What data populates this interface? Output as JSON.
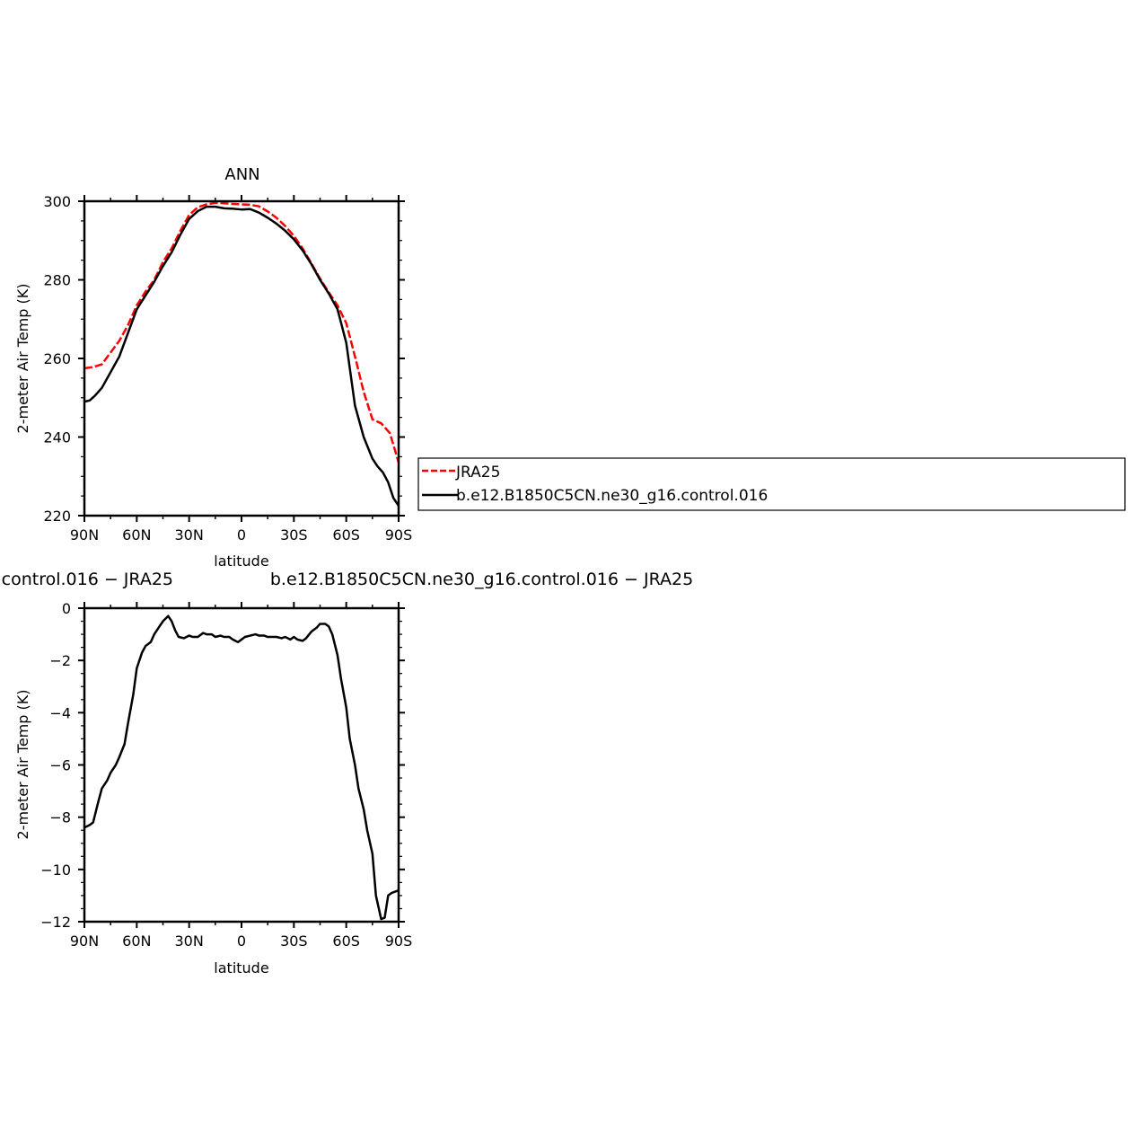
{
  "chart_data": [
    {
      "type": "line",
      "title": "ANN",
      "xlabel": "latitude",
      "ylabel": "2-meter Air Temp (K)",
      "xlim": [
        90,
        -90
      ],
      "ylim": [
        220,
        300
      ],
      "xticks": [
        {
          "v": 90,
          "label": "90N"
        },
        {
          "v": 60,
          "label": "60N"
        },
        {
          "v": 30,
          "label": "30N"
        },
        {
          "v": 0,
          "label": "0"
        },
        {
          "v": -30,
          "label": "30S"
        },
        {
          "v": -60,
          "label": "60S"
        },
        {
          "v": -90,
          "label": "90S"
        }
      ],
      "yticks": [
        300,
        280,
        260,
        240,
        220
      ],
      "legend": {
        "placement": "right",
        "entries": [
          {
            "label": "JRA25",
            "color": "#ff0000",
            "dash": "dashed"
          },
          {
            "label": "b.e12.B1850C5CN.ne30_g16.control.016",
            "color": "#000000",
            "dash": "solid"
          }
        ]
      },
      "series": [
        {
          "name": "JRA25",
          "color": "#ff0000",
          "dash": "dashed",
          "x": [
            90,
            85,
            80,
            75,
            70,
            65,
            60,
            55,
            50,
            45,
            40,
            35,
            30,
            25,
            20,
            15,
            10,
            5,
            0,
            -5,
            -10,
            -15,
            -20,
            -25,
            -30,
            -35,
            -40,
            -45,
            -50,
            -55,
            -60,
            -65,
            -70,
            -75,
            -80,
            -85,
            -90
          ],
          "y": [
            257.5,
            257.8,
            258.5,
            261.5,
            264.5,
            268.5,
            273.5,
            277,
            280,
            284.5,
            288,
            292.5,
            296.5,
            298.5,
            299.2,
            299.6,
            299.5,
            299.3,
            299.2,
            299.1,
            298.7,
            297.4,
            295.8,
            293.7,
            291.2,
            288,
            284.2,
            280.3,
            276.8,
            273.5,
            269,
            260.5,
            251.5,
            244.5,
            243.5,
            241,
            233.5
          ]
        },
        {
          "name": "b.e12.B1850C5CN.ne30_g16.control.016",
          "color": "#000000",
          "dash": "solid",
          "x": [
            90,
            87,
            84,
            80,
            75,
            70,
            65,
            60,
            55,
            50,
            45,
            40,
            35,
            30,
            25,
            20,
            15,
            10,
            5,
            0,
            -5,
            -10,
            -15,
            -20,
            -25,
            -30,
            -35,
            -40,
            -45,
            -50,
            -55,
            -60,
            -65,
            -70,
            -75,
            -78,
            -81,
            -84,
            -87,
            -90
          ],
          "y": [
            249,
            249.3,
            250.5,
            252.5,
            256.5,
            260.5,
            266.5,
            272.5,
            276,
            279.5,
            283.5,
            287,
            291.5,
            295.5,
            297.5,
            298.6,
            298.6,
            298.2,
            298.1,
            297.9,
            298,
            297.1,
            295.8,
            294.3,
            292.5,
            290.3,
            287.5,
            284,
            280,
            276.5,
            272.5,
            264,
            248,
            240,
            234.5,
            232.5,
            231,
            228.5,
            224.5,
            222.5
          ]
        }
      ]
    },
    {
      "type": "line",
      "title": "b.e12.B1850C5CN.ne30_g16.control.016 − JRA25",
      "xlabel": "latitude",
      "ylabel": "2-meter Air Temp (K)",
      "xlim": [
        90,
        -90
      ],
      "ylim": [
        -12,
        0
      ],
      "xticks": [
        {
          "v": 90,
          "label": "90N"
        },
        {
          "v": 60,
          "label": "60N"
        },
        {
          "v": 30,
          "label": "30N"
        },
        {
          "v": 0,
          "label": "0"
        },
        {
          "v": -30,
          "label": "30S"
        },
        {
          "v": -60,
          "label": "60S"
        },
        {
          "v": -90,
          "label": "90S"
        }
      ],
      "yticks": [
        0,
        -2,
        -4,
        -6,
        -8,
        -10,
        -12
      ],
      "series": [
        {
          "color": "#000000",
          "dash": "solid",
          "x": [
            90,
            87,
            85,
            82,
            80,
            77,
            75,
            72,
            70,
            67,
            65,
            62,
            60,
            57,
            55,
            52,
            50,
            47,
            45,
            42,
            40,
            38,
            36,
            33,
            30,
            28,
            25,
            22,
            20,
            17,
            15,
            12,
            10,
            7,
            5,
            2,
            0,
            -2,
            -5,
            -8,
            -10,
            -13,
            -15,
            -18,
            -20,
            -23,
            -25,
            -28,
            -30,
            -32,
            -35,
            -37,
            -40,
            -43,
            -45,
            -48,
            -50,
            -52,
            -55,
            -57,
            -60,
            -62,
            -65,
            -67,
            -70,
            -72,
            -75,
            -77,
            -80,
            -82,
            -84,
            -86,
            -88,
            -90
          ],
          "y": [
            -8.4,
            -8.3,
            -8.2,
            -7.4,
            -6.9,
            -6.6,
            -6.3,
            -6.0,
            -5.7,
            -5.2,
            -4.4,
            -3.3,
            -2.3,
            -1.7,
            -1.45,
            -1.3,
            -1.0,
            -0.7,
            -0.5,
            -0.3,
            -0.5,
            -0.85,
            -1.1,
            -1.15,
            -1.05,
            -1.1,
            -1.1,
            -0.95,
            -1.0,
            -1.0,
            -1.1,
            -1.05,
            -1.1,
            -1.1,
            -1.2,
            -1.3,
            -1.2,
            -1.1,
            -1.05,
            -1.0,
            -1.05,
            -1.05,
            -1.1,
            -1.1,
            -1.1,
            -1.15,
            -1.1,
            -1.2,
            -1.1,
            -1.2,
            -1.25,
            -1.15,
            -0.9,
            -0.75,
            -0.6,
            -0.6,
            -0.7,
            -1.0,
            -1.8,
            -2.7,
            -3.8,
            -5.0,
            -6.0,
            -6.9,
            -7.7,
            -8.5,
            -9.4,
            -11.0,
            -11.9,
            -11.85,
            -11.0,
            -10.9,
            -10.85,
            -10.8
          ]
        }
      ]
    }
  ]
}
